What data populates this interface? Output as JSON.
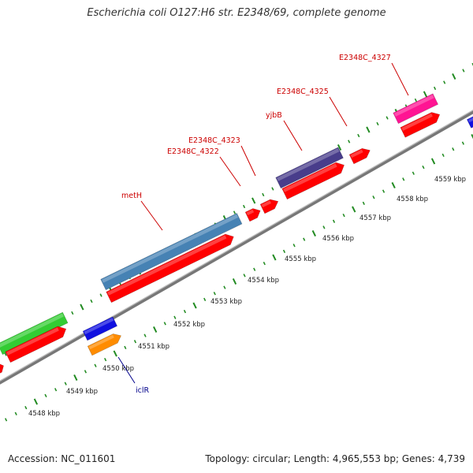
{
  "title": "Escherichia coli O127:H6 str. E2348/69, complete genome",
  "footer": {
    "accession": "Accession: NC_011601",
    "summary": "Topology: circular; Length: 4,965,553 bp; Genes: 4,739"
  },
  "colors": {
    "backbone": "#8c8c8c",
    "cds_forward": "#ff0000",
    "gene_blue": "#1010e0",
    "gene_orange": "#ff8c00",
    "gene_green": "#33cc33",
    "gene_steelblue": "#4682b4",
    "gene_purple": "#483d8b",
    "gene_pink": "#ff1493",
    "tick": "#228b22",
    "label_red": "#cc0000",
    "label_blue": "#00008b"
  },
  "ruler": {
    "unit": "kbp",
    "labels": [
      "4548 kbp",
      "4549 kbp",
      "4550 kbp",
      "4551 kbp",
      "4552 kbp",
      "4553 kbp",
      "4554 kbp",
      "4555 kbp",
      "4556 kbp",
      "4557 kbp",
      "4558 kbp",
      "4559 kbp"
    ]
  },
  "gene_labels": [
    {
      "name": "metH",
      "color": "label_red"
    },
    {
      "name": "E2348C_4322",
      "color": "label_red"
    },
    {
      "name": "E2348C_4323",
      "color": "label_red"
    },
    {
      "name": "yjbB",
      "color": "label_red"
    },
    {
      "name": "E2348C_4325",
      "color": "label_red"
    },
    {
      "name": "E2348C_4327",
      "color": "label_red"
    },
    {
      "name": "iclR",
      "color": "label_blue"
    }
  ]
}
